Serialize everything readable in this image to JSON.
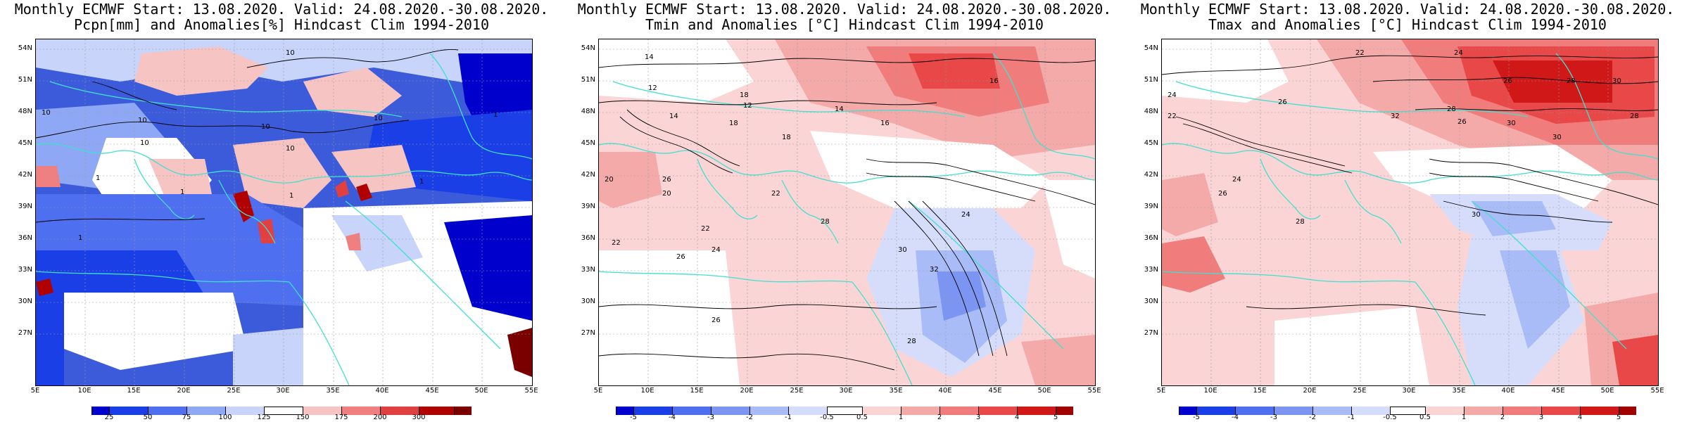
{
  "panels": [
    {
      "title1": "Monthly ECMWF Start: 13.08.2020. Valid: 24.08.2020.-30.08.2020.",
      "title2": "Pcpn[mm] and Anomalies[%] Hindcast Clim 1994-2010",
      "lat_labels": [
        "54N",
        "51N",
        "48N",
        "45N",
        "42N",
        "39N",
        "36N",
        "33N",
        "30N",
        "27N"
      ],
      "lon_labels": [
        "5E",
        "10E",
        "15E",
        "20E",
        "25E",
        "30E",
        "35E",
        "40E",
        "45E",
        "50E",
        "55E"
      ],
      "colorbar": {
        "labels": [
          "25",
          "50",
          "75",
          "100",
          "125",
          "150",
          "175",
          "200",
          "300"
        ],
        "colors": [
          "#0000cc",
          "#1a3fe6",
          "#4d6ff0",
          "#8ea8f5",
          "#c8d4fa",
          "#ffffff",
          "#f7c4c4",
          "#f08080",
          "#e04040",
          "#b00000",
          "#7a0000"
        ]
      },
      "contour_labels": [
        "10",
        "10",
        "10",
        "10",
        "10",
        "10",
        "10",
        "1",
        "1",
        "1",
        "1",
        "1",
        "1"
      ]
    },
    {
      "title1": "Monthly ECMWF Start: 13.08.2020. Valid: 24.08.2020.-30.08.2020.",
      "title2": "Tmin and Anomalies [°C] Hindcast Clim 1994-2010",
      "lat_labels": [
        "54N",
        "51N",
        "48N",
        "45N",
        "42N",
        "39N",
        "36N",
        "33N",
        "30N",
        "27N"
      ],
      "lon_labels": [
        "5E",
        "10E",
        "15E",
        "20E",
        "25E",
        "30E",
        "35E",
        "40E",
        "45E",
        "50E",
        "55E"
      ],
      "colorbar": {
        "labels": [
          "-5",
          "-4",
          "-3",
          "-2",
          "-1",
          "-0.5",
          "0.5",
          "1",
          "2",
          "3",
          "4",
          "5"
        ],
        "colors": [
          "#0000cc",
          "#1a3fe6",
          "#4d6ff0",
          "#7d95f2",
          "#aabcf7",
          "#d5ddfb",
          "#ffffff",
          "#fbd5d5",
          "#f5aaaa",
          "#f07c7c",
          "#e84848",
          "#d01818",
          "#a00000"
        ]
      },
      "contour_labels": [
        "14",
        "16",
        "12",
        "14",
        "18",
        "18",
        "12",
        "14",
        "16",
        "22",
        "24",
        "26",
        "20",
        "22",
        "26",
        "28",
        "30",
        "32",
        "18",
        "20",
        "22",
        "24",
        "26",
        "28"
      ]
    },
    {
      "title1": "Monthly ECMWF Start: 13.08.2020. Valid: 24.08.2020.-30.08.2020.",
      "title2": "Tmax and Anomalies [°C] Hindcast Clim 1994-2010",
      "lat_labels": [
        "54N",
        "51N",
        "48N",
        "45N",
        "42N",
        "39N",
        "36N",
        "33N",
        "30N",
        "27N"
      ],
      "lon_labels": [
        "5E",
        "10E",
        "15E",
        "20E",
        "25E",
        "30E",
        "35E",
        "40E",
        "45E",
        "50E",
        "55E"
      ],
      "colorbar": {
        "labels": [
          "-5",
          "-4",
          "-3",
          "-2",
          "-1",
          "-0.5",
          "0.5",
          "1",
          "2",
          "3",
          "4",
          "5"
        ],
        "colors": [
          "#0000cc",
          "#1a3fe6",
          "#4d6ff0",
          "#7d95f2",
          "#aabcf7",
          "#d5ddfb",
          "#ffffff",
          "#fbd5d5",
          "#f5aaaa",
          "#f07c7c",
          "#e84848",
          "#d01818",
          "#a00000"
        ]
      },
      "contour_labels": [
        "22",
        "24",
        "26",
        "28",
        "30",
        "24",
        "26",
        "28",
        "30",
        "32",
        "26",
        "28",
        "30",
        "22",
        "24",
        "26",
        "30",
        "28"
      ]
    }
  ]
}
